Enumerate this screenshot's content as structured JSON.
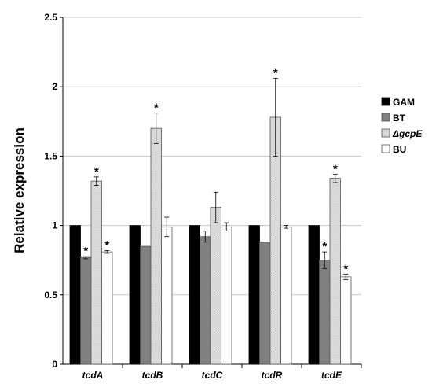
{
  "chart_data": {
    "type": "bar",
    "title": "",
    "xlabel": "",
    "ylabel": "Relative expression",
    "ylim": [
      0,
      2.5
    ],
    "yticks": [
      0,
      0.5,
      1,
      1.5,
      2,
      2.5
    ],
    "ytick_labels": [
      "0",
      "0.5",
      "1",
      "1.5",
      "2",
      "2.5"
    ],
    "grid": true,
    "legend_position": "right",
    "categories": [
      "tcdA",
      "tcdB",
      "tcdC",
      "tcdR",
      "tcdE"
    ],
    "series": [
      {
        "name": "GAM",
        "color": "#000000",
        "values": [
          1,
          1,
          1,
          1,
          1
        ],
        "errors": [
          0,
          0,
          0,
          0,
          0
        ],
        "significant": [
          false,
          false,
          false,
          false,
          false
        ]
      },
      {
        "name": "BT",
        "color": "#808080",
        "values": [
          0.77,
          0.85,
          0.92,
          0.88,
          0.75
        ],
        "errors": [
          0.01,
          0.0,
          0.04,
          0.0,
          0.06
        ],
        "significant": [
          true,
          false,
          false,
          false,
          true
        ]
      },
      {
        "name": "ΔgcpE",
        "color": "#dcdcdc",
        "pattern": "hatched",
        "values": [
          1.32,
          1.7,
          1.13,
          1.78,
          1.34
        ],
        "errors": [
          0.03,
          0.11,
          0.11,
          0.28,
          0.03
        ],
        "significant": [
          true,
          true,
          false,
          true,
          true
        ]
      },
      {
        "name": "BU",
        "color": "#ffffff",
        "values": [
          0.81,
          0.99,
          0.99,
          0.99,
          0.63
        ],
        "errors": [
          0.01,
          0.07,
          0.03,
          0.01,
          0.02
        ],
        "significant": [
          true,
          false,
          false,
          false,
          true
        ]
      }
    ],
    "significance_marker": "*"
  }
}
